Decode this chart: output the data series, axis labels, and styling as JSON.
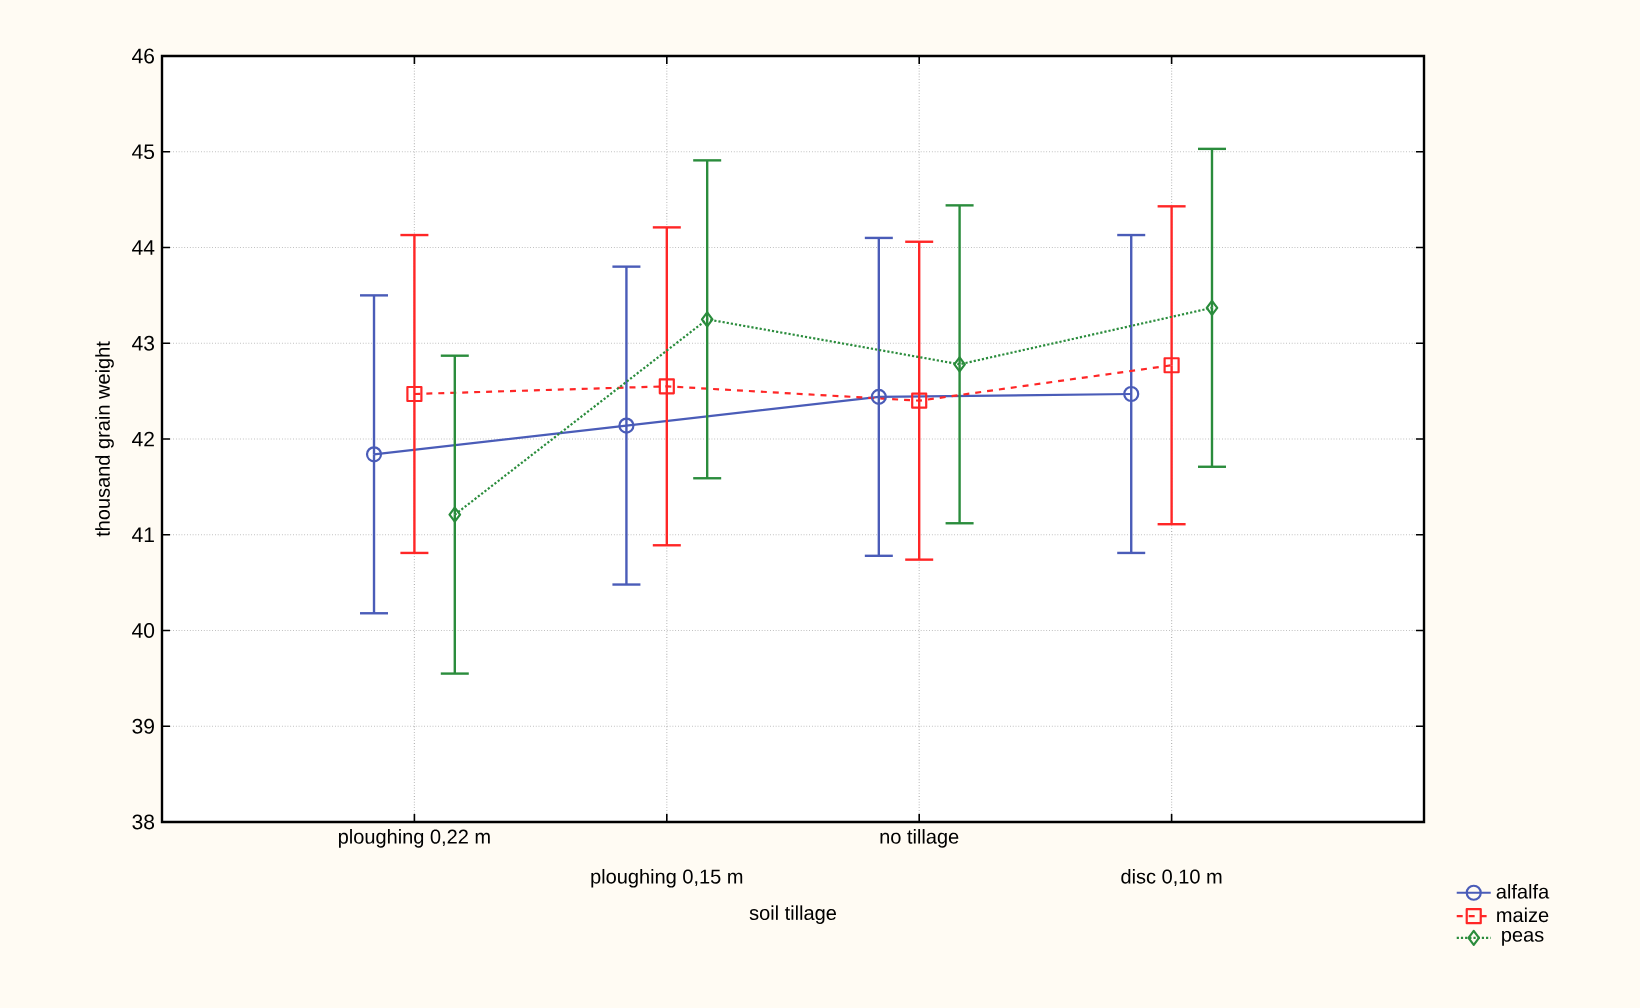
{
  "chart_data": {
    "type": "line",
    "xlabel": "soil tillage",
    "ylabel": "thousand grain weight",
    "categories": [
      "ploughing 0,22 m",
      "ploughing 0,15 m",
      "no tillage",
      "disc 0,10 m"
    ],
    "ylim": [
      38,
      46
    ],
    "yticks": [
      38,
      39,
      40,
      41,
      42,
      43,
      44,
      45,
      46
    ],
    "grid": true,
    "legend": "bottom right",
    "series": [
      {
        "name": "alfalfa",
        "color": "#4a5cb8",
        "marker": "circle",
        "line_style": "solid",
        "values": [
          41.84,
          42.14,
          42.44,
          42.47
        ],
        "errors": [
          1.66,
          1.66,
          1.66,
          1.66
        ]
      },
      {
        "name": "maize",
        "color": "#ff2626",
        "marker": "square",
        "line_style": "dashed",
        "values": [
          42.47,
          42.55,
          42.4,
          42.77
        ],
        "errors": [
          1.66,
          1.66,
          1.66,
          1.66
        ]
      },
      {
        "name": "peas",
        "color": "#2a8c3c",
        "marker": "diamond",
        "line_style": "dotted",
        "values": [
          41.21,
          43.25,
          42.78,
          43.37
        ],
        "errors": [
          1.66,
          1.66,
          1.66,
          1.66
        ]
      }
    ]
  }
}
